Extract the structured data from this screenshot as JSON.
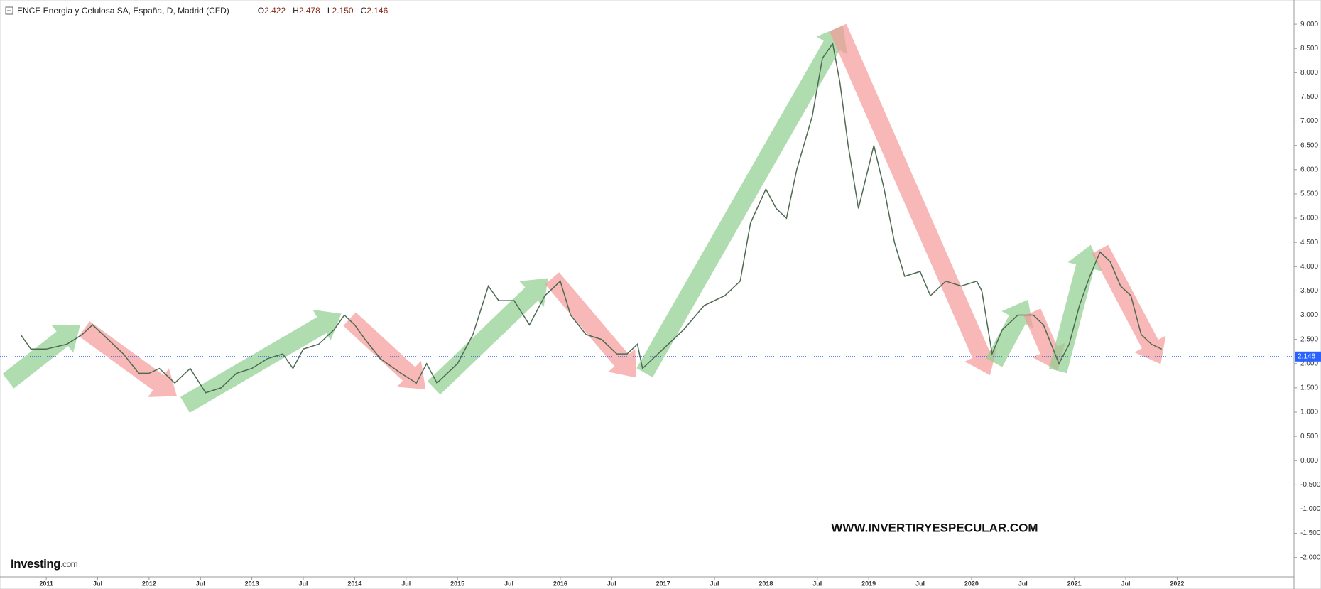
{
  "chart_data": {
    "type": "line",
    "title": "ENCE Energia y Celulosa SA, España, D, Madrid (CFD)",
    "ohlc_labels": [
      "O",
      "H",
      "L",
      "C"
    ],
    "ohlc_values": [
      "2.422",
      "2.478",
      "2.150",
      "2.146"
    ],
    "watermark": "WWW.INVERTIRYESPECULAR.COM",
    "logo": "Investing",
    "logo_suffix": ".com",
    "last_price": 2.146,
    "color": "#4e6a52",
    "last_price_color": "#2962ff",
    "x": [
      2010.75,
      2010.85,
      2011.0,
      2011.2,
      2011.35,
      2011.45,
      2011.6,
      2011.75,
      2011.9,
      2012.0,
      2012.1,
      2012.25,
      2012.4,
      2012.55,
      2012.7,
      2012.85,
      2013.0,
      2013.15,
      2013.3,
      2013.4,
      2013.5,
      2013.65,
      2013.8,
      2013.9,
      2014.0,
      2014.1,
      2014.25,
      2014.45,
      2014.6,
      2014.7,
      2014.8,
      2015.0,
      2015.15,
      2015.3,
      2015.4,
      2015.55,
      2015.7,
      2015.85,
      2016.0,
      2016.1,
      2016.25,
      2016.4,
      2016.55,
      2016.65,
      2016.75,
      2016.8,
      2017.0,
      2017.2,
      2017.4,
      2017.6,
      2017.75,
      2017.85,
      2018.0,
      2018.1,
      2018.2,
      2018.3,
      2018.45,
      2018.55,
      2018.65,
      2018.72,
      2018.8,
      2018.9,
      2019.05,
      2019.15,
      2019.25,
      2019.35,
      2019.5,
      2019.6,
      2019.75,
      2019.9,
      2020.05,
      2020.1,
      2020.2,
      2020.3,
      2020.45,
      2020.6,
      2020.7,
      2020.85,
      2020.95,
      2021.05,
      2021.15,
      2021.25,
      2021.35,
      2021.45,
      2021.55,
      2021.65,
      2021.75,
      2021.85
    ],
    "values": [
      2.6,
      2.3,
      2.3,
      2.4,
      2.6,
      2.8,
      2.5,
      2.2,
      1.8,
      1.8,
      1.9,
      1.6,
      1.9,
      1.4,
      1.5,
      1.8,
      1.9,
      2.1,
      2.2,
      1.9,
      2.3,
      2.4,
      2.7,
      3.0,
      2.8,
      2.5,
      2.1,
      1.8,
      1.6,
      2.0,
      1.6,
      2.0,
      2.6,
      3.6,
      3.3,
      3.3,
      2.8,
      3.4,
      3.7,
      3.0,
      2.6,
      2.5,
      2.2,
      2.2,
      2.4,
      1.9,
      2.3,
      2.7,
      3.2,
      3.4,
      3.7,
      4.9,
      5.6,
      5.2,
      5.0,
      6.0,
      7.1,
      8.3,
      8.6,
      7.8,
      6.5,
      5.2,
      6.5,
      5.6,
      4.5,
      3.8,
      3.9,
      3.4,
      3.7,
      3.6,
      3.7,
      3.5,
      2.2,
      2.7,
      3.0,
      3.0,
      2.8,
      2.0,
      2.4,
      3.2,
      3.8,
      4.3,
      4.1,
      3.6,
      3.4,
      2.6,
      2.4,
      2.3
    ],
    "arrows": [
      {
        "from": [
          2010.63,
          1.64
        ],
        "to": [
          2011.33,
          2.8
        ],
        "color": "#8fcf8f"
      },
      {
        "from": [
          2011.37,
          2.72
        ],
        "to": [
          2012.27,
          1.33
        ],
        "color": "#f59a9a"
      },
      {
        "from": [
          2012.35,
          1.15
        ],
        "to": [
          2013.87,
          3.03
        ],
        "color": "#8fcf8f"
      },
      {
        "from": [
          2013.95,
          2.92
        ],
        "to": [
          2014.69,
          1.47
        ],
        "color": "#f59a9a"
      },
      {
        "from": [
          2014.77,
          1.5
        ],
        "to": [
          2015.88,
          3.76
        ],
        "color": "#8fcf8f"
      },
      {
        "from": [
          2015.92,
          3.76
        ],
        "to": [
          2016.74,
          1.71
        ],
        "color": "#f59a9a"
      },
      {
        "from": [
          2016.82,
          1.81
        ],
        "to": [
          2018.75,
          8.97
        ],
        "color": "#8fcf8f"
      },
      {
        "from": [
          2018.7,
          8.93
        ],
        "to": [
          2020.18,
          1.76
        ],
        "color": "#f59a9a"
      },
      {
        "from": [
          2020.22,
          2.02
        ],
        "to": [
          2020.55,
          3.32
        ],
        "color": "#8fcf8f"
      },
      {
        "from": [
          2020.59,
          3.06
        ],
        "to": [
          2020.84,
          1.85
        ],
        "color": "#f59a9a"
      },
      {
        "from": [
          2020.84,
          1.85
        ],
        "to": [
          2021.16,
          4.45
        ],
        "color": "#8fcf8f"
      },
      {
        "from": [
          2021.25,
          4.36
        ],
        "to": [
          2021.84,
          1.99
        ],
        "color": "#f59a9a"
      }
    ],
    "xlim": [
      2010.55,
      2023.13
    ],
    "ylim": [
      -2.4,
      9.5
    ],
    "xticks": [
      2011,
      {
        "value": 2011.5,
        "label": "Jul"
      },
      2012,
      {
        "value": 2012.5,
        "label": "Jul"
      },
      2013,
      {
        "value": 2013.5,
        "label": "Jul"
      },
      2014,
      {
        "value": 2014.5,
        "label": "Jul"
      },
      2015,
      {
        "value": 2015.5,
        "label": "Jul"
      },
      2016,
      {
        "value": 2016.5,
        "label": "Jul"
      },
      2017,
      {
        "value": 2017.5,
        "label": "Jul"
      },
      2018,
      {
        "value": 2018.5,
        "label": "Jul"
      },
      2019,
      {
        "value": 2019.5,
        "label": "Jul"
      },
      2020,
      {
        "value": 2020.5,
        "label": "Jul"
      },
      2021,
      {
        "value": 2021.5,
        "label": "Jul"
      },
      2022
    ],
    "yticks": [
      {
        "value": 9,
        "label": "9.000"
      },
      {
        "value": 8.5,
        "label": "8.500"
      },
      {
        "value": 8,
        "label": "8.000"
      },
      {
        "value": 7.5,
        "label": "7.500"
      },
      {
        "value": 7,
        "label": "7.000"
      },
      {
        "value": 6.5,
        "label": "6.500"
      },
      {
        "value": 6,
        "label": "6.000"
      },
      {
        "value": 5.5,
        "label": "5.500"
      },
      {
        "value": 5,
        "label": "5.000"
      },
      {
        "value": 4.5,
        "label": "4.500"
      },
      {
        "value": 4,
        "label": "4.000"
      },
      {
        "value": 3.5,
        "label": "3.500"
      },
      {
        "value": 3,
        "label": "3.000"
      },
      {
        "value": 2.5,
        "label": "2.500"
      },
      {
        "value": 2,
        "label": "2.000"
      },
      {
        "value": 1.5,
        "label": "1.500"
      },
      {
        "value": 1,
        "label": "1.000"
      },
      {
        "value": 0.5,
        "label": "0.500"
      },
      {
        "value": 0,
        "label": "0.000"
      },
      {
        "value": -0.5,
        "label": "-0.500"
      },
      {
        "value": -1,
        "label": "-1.000"
      },
      {
        "value": -1.5,
        "label": "-1.500"
      },
      {
        "value": -2,
        "label": "-2.000"
      }
    ]
  }
}
